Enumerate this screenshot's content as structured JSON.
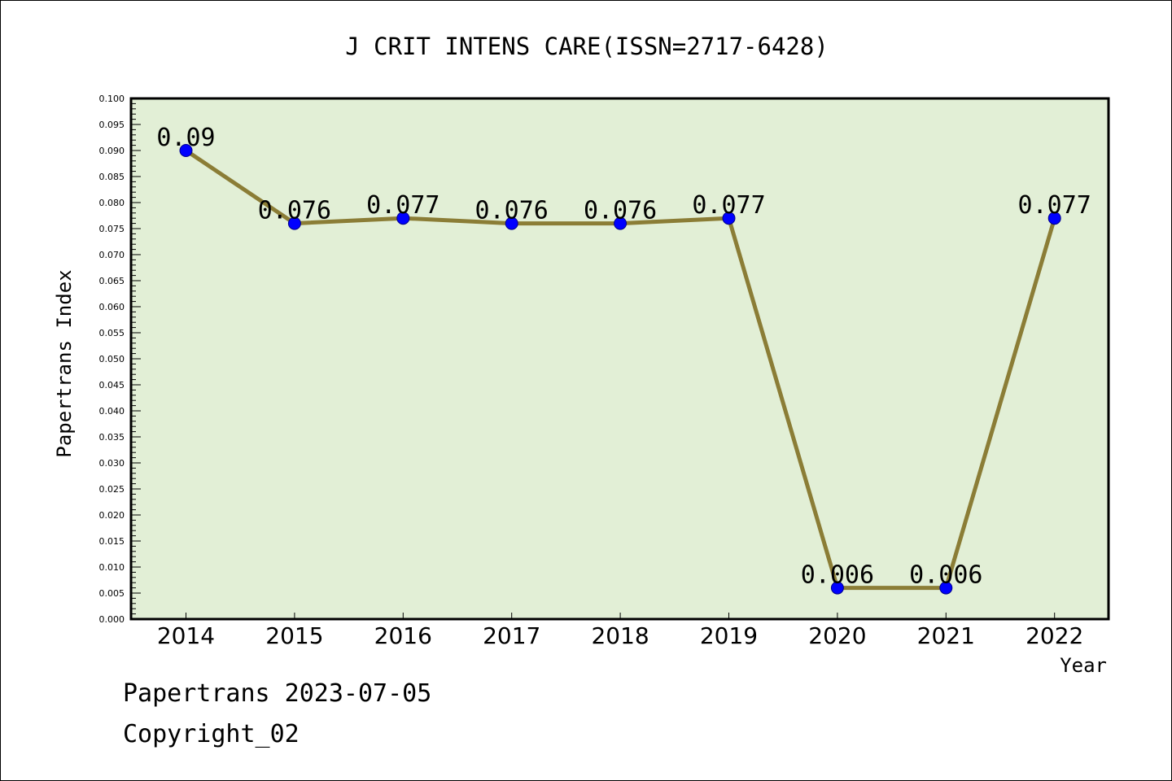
{
  "chart_data": {
    "type": "line",
    "title": "J CRIT INTENS CARE(ISSN=2717-6428)",
    "xlabel": "Year",
    "ylabel": "Papertrans Index",
    "categories": [
      "2014",
      "2015",
      "2016",
      "2017",
      "2018",
      "2019",
      "2020",
      "2021",
      "2022"
    ],
    "values": [
      0.09,
      0.076,
      0.077,
      0.076,
      0.076,
      0.077,
      0.006,
      0.006,
      0.077
    ],
    "data_labels": [
      "0.09",
      "0.076",
      "0.077",
      "0.076",
      "0.076",
      "0.077",
      "0.006",
      "0.006",
      "0.077"
    ],
    "ylim": [
      0,
      0.1
    ],
    "y_ticks": [
      "0.000",
      "0.005",
      "0.010",
      "0.015",
      "0.020",
      "0.025",
      "0.030",
      "0.035",
      "0.040",
      "0.045",
      "0.050",
      "0.055",
      "0.060",
      "0.065",
      "0.070",
      "0.075",
      "0.080",
      "0.085",
      "0.090",
      "0.095",
      "0.100"
    ],
    "grid": false,
    "colors": {
      "plot_background": "#e2efd6",
      "line": "#8b7d36",
      "marker": "#0000ff"
    }
  },
  "footer": {
    "date_text": "Papertrans 2023-07-05",
    "copyright_text": "Copyright_02"
  }
}
